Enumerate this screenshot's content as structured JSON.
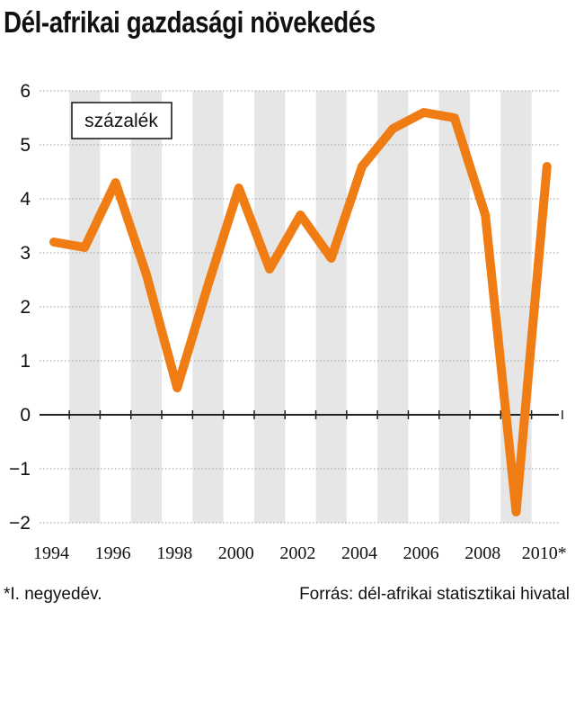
{
  "title": "Dél-afrikai gazdasági növekedés",
  "unit_label": "százalék",
  "footnote": "*I. negyedév.",
  "source": "Forrás: dél-afrikai statisztikai hivatal",
  "colors": {
    "line": "#f07d14",
    "band": "#e6e6e6",
    "grid": "#9a9a9a",
    "zero": "#222222"
  },
  "chart_data": {
    "type": "line",
    "title": "Dél-afrikai gazdasági növekedés",
    "ylabel": "százalék",
    "ylim": [
      -2,
      6
    ],
    "yticks": [
      6,
      5,
      4,
      3,
      2,
      1,
      0,
      -1,
      -2
    ],
    "xticks": [
      "1994",
      "1996",
      "1998",
      "2000",
      "2002",
      "2004",
      "2006",
      "2008",
      "2010*"
    ],
    "grid": true,
    "series": [
      {
        "x": [
          "1994",
          "1995",
          "1996",
          "1997",
          "1998",
          "1999",
          "2000",
          "2001",
          "2002",
          "2003",
          "2004",
          "2005",
          "2006",
          "2007",
          "2008",
          "2009",
          "2010*"
        ],
        "values": [
          3.2,
          3.1,
          4.3,
          2.6,
          0.5,
          2.4,
          4.2,
          2.7,
          3.7,
          2.9,
          4.6,
          5.3,
          5.6,
          5.5,
          3.7,
          -1.8,
          4.6
        ]
      }
    ]
  }
}
